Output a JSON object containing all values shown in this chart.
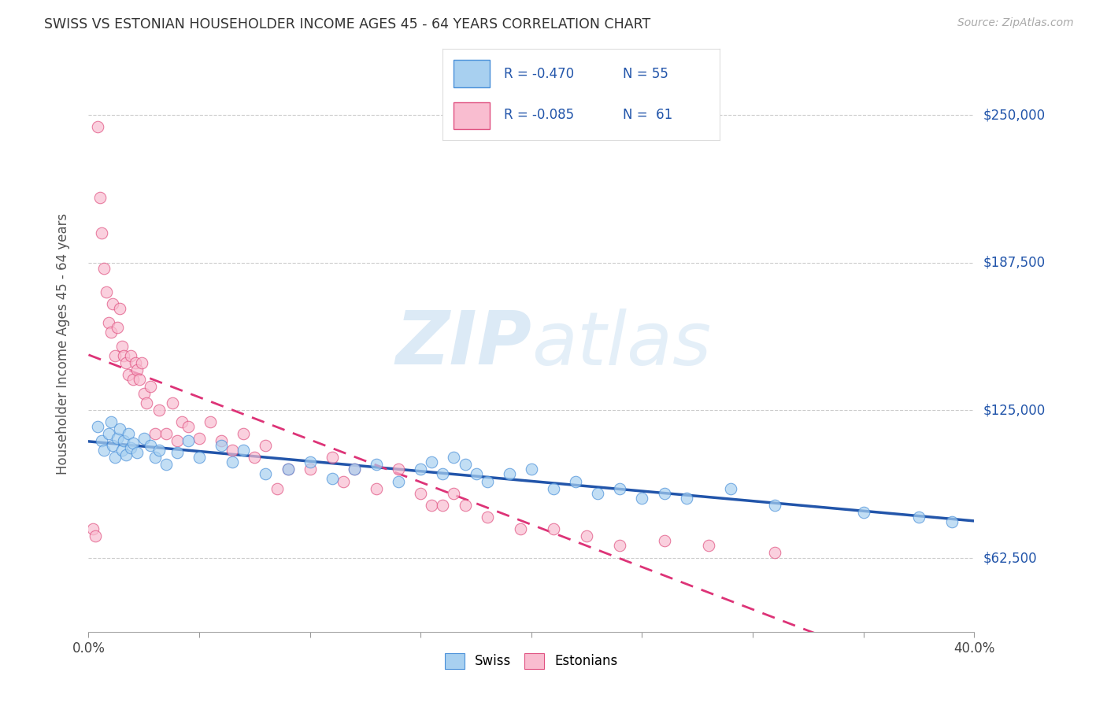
{
  "title": "SWISS VS ESTONIAN HOUSEHOLDER INCOME AGES 45 - 64 YEARS CORRELATION CHART",
  "source": "Source: ZipAtlas.com",
  "ylabel": "Householder Income Ages 45 - 64 years",
  "xlim": [
    0.0,
    0.4
  ],
  "ylim": [
    31250,
    275000
  ],
  "xticks": [
    0.0,
    0.05,
    0.1,
    0.15,
    0.2,
    0.25,
    0.3,
    0.35,
    0.4
  ],
  "yticks": [
    62500,
    125000,
    187500,
    250000
  ],
  "yticklabels": [
    "$62,500",
    "$125,000",
    "$187,500",
    "$250,000"
  ],
  "R_swiss": -0.47,
  "N_swiss": 55,
  "R_estonian": -0.085,
  "N_estonian": 61,
  "swiss_fill": "#A8D0F0",
  "swiss_edge": "#4A90D9",
  "estonian_fill": "#F9BDD0",
  "estonian_edge": "#E05080",
  "swiss_line_color": "#2255AA",
  "estonian_line_color": "#DD3377",
  "watermark_zip": "ZIP",
  "watermark_atlas": "atlas",
  "background_color": "#ffffff",
  "swiss_x": [
    0.004,
    0.006,
    0.007,
    0.009,
    0.01,
    0.011,
    0.012,
    0.013,
    0.014,
    0.015,
    0.016,
    0.017,
    0.018,
    0.019,
    0.02,
    0.022,
    0.025,
    0.028,
    0.03,
    0.032,
    0.035,
    0.04,
    0.045,
    0.05,
    0.06,
    0.065,
    0.07,
    0.08,
    0.09,
    0.1,
    0.11,
    0.12,
    0.13,
    0.14,
    0.15,
    0.155,
    0.16,
    0.165,
    0.17,
    0.175,
    0.18,
    0.19,
    0.2,
    0.21,
    0.22,
    0.23,
    0.24,
    0.25,
    0.26,
    0.27,
    0.29,
    0.31,
    0.35,
    0.375,
    0.39
  ],
  "swiss_y": [
    118000,
    112000,
    108000,
    115000,
    120000,
    110000,
    105000,
    113000,
    117000,
    108000,
    112000,
    106000,
    115000,
    109000,
    111000,
    107000,
    113000,
    110000,
    105000,
    108000,
    102000,
    107000,
    112000,
    105000,
    110000,
    103000,
    108000,
    98000,
    100000,
    103000,
    96000,
    100000,
    102000,
    95000,
    100000,
    103000,
    98000,
    105000,
    102000,
    98000,
    95000,
    98000,
    100000,
    92000,
    95000,
    90000,
    92000,
    88000,
    90000,
    88000,
    92000,
    85000,
    82000,
    80000,
    78000
  ],
  "estonian_x": [
    0.002,
    0.003,
    0.004,
    0.005,
    0.006,
    0.007,
    0.008,
    0.009,
    0.01,
    0.011,
    0.012,
    0.013,
    0.014,
    0.015,
    0.016,
    0.017,
    0.018,
    0.019,
    0.02,
    0.021,
    0.022,
    0.023,
    0.024,
    0.025,
    0.026,
    0.028,
    0.03,
    0.032,
    0.035,
    0.038,
    0.04,
    0.042,
    0.045,
    0.05,
    0.055,
    0.06,
    0.065,
    0.07,
    0.075,
    0.08,
    0.085,
    0.09,
    0.1,
    0.11,
    0.115,
    0.12,
    0.13,
    0.14,
    0.15,
    0.155,
    0.16,
    0.165,
    0.17,
    0.18,
    0.195,
    0.21,
    0.225,
    0.24,
    0.26,
    0.28,
    0.31
  ],
  "estonian_y": [
    75000,
    72000,
    245000,
    215000,
    200000,
    185000,
    175000,
    162000,
    158000,
    170000,
    148000,
    160000,
    168000,
    152000,
    148000,
    145000,
    140000,
    148000,
    138000,
    145000,
    142000,
    138000,
    145000,
    132000,
    128000,
    135000,
    115000,
    125000,
    115000,
    128000,
    112000,
    120000,
    118000,
    113000,
    120000,
    112000,
    108000,
    115000,
    105000,
    110000,
    92000,
    100000,
    100000,
    105000,
    95000,
    100000,
    92000,
    100000,
    90000,
    85000,
    85000,
    90000,
    85000,
    80000,
    75000,
    75000,
    72000,
    68000,
    70000,
    68000,
    65000
  ]
}
